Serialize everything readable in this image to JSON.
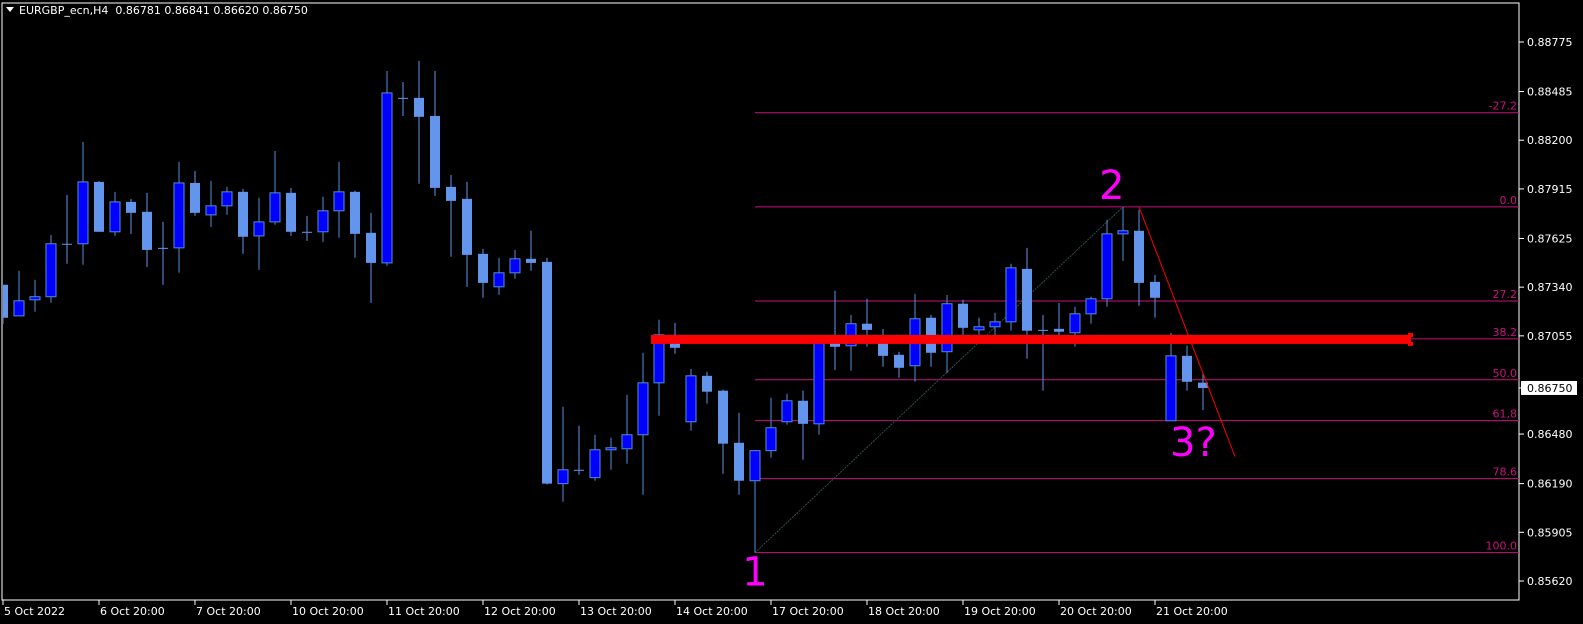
{
  "header": {
    "symbol": "EURGBP_ecn,H4",
    "open": "0.86781",
    "high": "0.86841",
    "low": "0.86620",
    "close": "0.86750"
  },
  "colors": {
    "background": "#000000",
    "foreground": "#ffffff",
    "bull_body": "#0000ff",
    "bull_border": "#4f8fd8",
    "bear_body": "#6495ed",
    "fib": "#c8127e",
    "support_line": "#ff0000",
    "trendline": "#ff0000",
    "zigzag": "#2f4f4f",
    "wave_label": "#ff00ff"
  },
  "chart_data": {
    "type": "candlestick",
    "timeframe": "H4",
    "ylim": [
      0.8552,
      0.8902
    ],
    "grid": false,
    "yticks": [
      "0.88775",
      "0.88485",
      "0.88200",
      "0.87915",
      "0.87625",
      "0.87340",
      "0.87055",
      "0.86480",
      "0.86190",
      "0.85905",
      "0.85620"
    ],
    "current_price": "0.86750",
    "xticks": [
      {
        "label": "5 Oct 2022",
        "bar": 0
      },
      {
        "label": "6 Oct 20:00",
        "bar": 6
      },
      {
        "label": "7 Oct 20:00",
        "bar": 12
      },
      {
        "label": "10 Oct 20:00",
        "bar": 18
      },
      {
        "label": "11 Oct 20:00",
        "bar": 24
      },
      {
        "label": "12 Oct 20:00",
        "bar": 30
      },
      {
        "label": "13 Oct 20:00",
        "bar": 36
      },
      {
        "label": "14 Oct 20:00",
        "bar": 42
      },
      {
        "label": "17 Oct 20:00",
        "bar": 48
      },
      {
        "label": "18 Oct 20:00",
        "bar": 54
      },
      {
        "label": "19 Oct 20:00",
        "bar": 60
      },
      {
        "label": "20 Oct 20:00",
        "bar": 66
      },
      {
        "label": "21 Oct 20:00",
        "bar": 72
      }
    ],
    "candles": [
      [
        0.87354,
        0.87354,
        0.87126,
        0.87161
      ],
      [
        0.87172,
        0.87436,
        0.87172,
        0.8726
      ],
      [
        0.87266,
        0.87383,
        0.87196,
        0.87284
      ],
      [
        0.87284,
        0.87646,
        0.87248,
        0.87594
      ],
      [
        0.87594,
        0.8788,
        0.87477,
        0.87594
      ],
      [
        0.87594,
        0.8819,
        0.87471,
        0.87956
      ],
      [
        0.87956,
        0.87962,
        0.87664,
        0.87664
      ],
      [
        0.87664,
        0.87898,
        0.8764,
        0.87839
      ],
      [
        0.87839,
        0.87857,
        0.87652,
        0.87775
      ],
      [
        0.87781,
        0.87892,
        0.87459,
        0.87558
      ],
      [
        0.8757,
        0.87722,
        0.87354,
        0.8757
      ],
      [
        0.8757,
        0.88073,
        0.87424,
        0.8795
      ],
      [
        0.8795,
        0.88021,
        0.87757,
        0.87775
      ],
      [
        0.87763,
        0.87962,
        0.87693,
        0.87816
      ],
      [
        0.87816,
        0.87927,
        0.87763,
        0.87898
      ],
      [
        0.87898,
        0.87915,
        0.87535,
        0.87635
      ],
      [
        0.8764,
        0.87863,
        0.87441,
        0.87722
      ],
      [
        0.87722,
        0.88138,
        0.87705,
        0.87892
      ],
      [
        0.87892,
        0.87921,
        0.8764,
        0.87664
      ],
      [
        0.87664,
        0.87757,
        0.87611,
        0.87664
      ],
      [
        0.87664,
        0.87869,
        0.87605,
        0.87787
      ],
      [
        0.87787,
        0.88073,
        0.87629,
        0.87898
      ],
      [
        0.87898,
        0.87904,
        0.87512,
        0.87652
      ],
      [
        0.87658,
        0.87775,
        0.87248,
        0.87482
      ],
      [
        0.87482,
        0.88606,
        0.87465,
        0.88477
      ],
      [
        0.88448,
        0.88541,
        0.88342,
        0.88448
      ],
      [
        0.88448,
        0.88664,
        0.87945,
        0.88337
      ],
      [
        0.88342,
        0.88606,
        0.87874,
        0.87921
      ],
      [
        0.87927,
        0.87997,
        0.87518,
        0.87845
      ],
      [
        0.87857,
        0.87956,
        0.87342,
        0.87529
      ],
      [
        0.87535,
        0.87564,
        0.87278,
        0.87365
      ],
      [
        0.87342,
        0.87512,
        0.87295,
        0.87424
      ],
      [
        0.87424,
        0.87558,
        0.87389,
        0.87506
      ],
      [
        0.87506,
        0.8767,
        0.87436,
        0.87482
      ],
      [
        0.87488,
        0.87512,
        0.86184,
        0.8619
      ],
      [
        0.8619,
        0.8664,
        0.86084,
        0.86271
      ],
      [
        0.86271,
        0.86529,
        0.86242,
        0.86271
      ],
      [
        0.86225,
        0.86476,
        0.86207,
        0.86388
      ],
      [
        0.86388,
        0.86459,
        0.86271,
        0.864
      ],
      [
        0.86394,
        0.8671,
        0.86307,
        0.86476
      ],
      [
        0.86476,
        0.86956,
        0.86125,
        0.8678
      ],
      [
        0.8678,
        0.87149,
        0.86587,
        0.87061
      ],
      [
        0.87061,
        0.87131,
        0.8695,
        0.86985
      ],
      [
        0.86552,
        0.86862,
        0.865,
        0.86821
      ],
      [
        0.86821,
        0.86845,
        0.86658,
        0.86728
      ],
      [
        0.86734,
        0.8674,
        0.86248,
        0.86424
      ],
      [
        0.86429,
        0.86605,
        0.86125,
        0.86207
      ],
      [
        0.86207,
        0.86383,
        0.85786,
        0.86383
      ],
      [
        0.86383,
        0.86693,
        0.86342,
        0.86517
      ],
      [
        0.86552,
        0.86716,
        0.86535,
        0.86675
      ],
      [
        0.86675,
        0.86734,
        0.8633,
        0.8654
      ],
      [
        0.8654,
        0.87044,
        0.86476,
        0.8702
      ],
      [
        0.87026,
        0.87319,
        0.86856,
        0.86991
      ],
      [
        0.86997,
        0.87178,
        0.86851,
        0.87126
      ],
      [
        0.87126,
        0.87272,
        0.86991,
        0.8709
      ],
      [
        0.8705,
        0.87096,
        0.86874,
        0.86938
      ],
      [
        0.86944,
        0.86962,
        0.8681,
        0.86868
      ],
      [
        0.8688,
        0.87301,
        0.86786,
        0.87155
      ],
      [
        0.87161,
        0.87178,
        0.86874,
        0.86956
      ],
      [
        0.86962,
        0.87295,
        0.86839,
        0.87243
      ],
      [
        0.87243,
        0.87266,
        0.87038,
        0.87102
      ],
      [
        0.8709,
        0.87161,
        0.87061,
        0.87108
      ],
      [
        0.87108,
        0.8719,
        0.87038,
        0.87137
      ],
      [
        0.87137,
        0.87477,
        0.87085,
        0.87453
      ],
      [
        0.87447,
        0.8757,
        0.86921,
        0.87085
      ],
      [
        0.8709,
        0.87178,
        0.86734,
        0.8709
      ],
      [
        0.87096,
        0.87248,
        0.87044,
        0.87079
      ],
      [
        0.87073,
        0.87225,
        0.86991,
        0.87184
      ],
      [
        0.87184,
        0.87284,
        0.87126,
        0.87272
      ],
      [
        0.87272,
        0.87734,
        0.87225,
        0.87652
      ],
      [
        0.87652,
        0.8781,
        0.87494,
        0.8767
      ],
      [
        0.8767,
        0.87792,
        0.87231,
        0.87365
      ],
      [
        0.87371,
        0.87412,
        0.87161,
        0.87278
      ],
      [
        0.86558,
        0.87073,
        0.86558,
        0.86938
      ],
      [
        0.86938,
        0.86997,
        0.86734,
        0.86786
      ],
      [
        0.86781,
        0.86841,
        0.8662,
        0.8675
      ]
    ],
    "fibonacci": {
      "from": {
        "bar": 47,
        "price": 0.85786
      },
      "to": {
        "bar": 70,
        "price": 0.8781
      },
      "levels": [
        {
          "label": "-27.2",
          "price": 0.88361
        },
        {
          "label": "0.0",
          "price": 0.8781
        },
        {
          "label": "27.2",
          "price": 0.87259
        },
        {
          "label": "38.2",
          "price": 0.87037
        },
        {
          "label": "50.0",
          "price": 0.86798
        },
        {
          "label": "61,8",
          "price": 0.86559
        },
        {
          "label": "78.6",
          "price": 0.86219
        },
        {
          "label": "100.0",
          "price": 0.85786
        }
      ]
    },
    "support_line": {
      "price": 0.87037,
      "from_bar": 41,
      "to_bar": 88
    },
    "trendline": {
      "from": {
        "bar": 71,
        "price": 0.8781
      },
      "to": {
        "bar": 77,
        "price": 0.86348
      }
    },
    "wave_labels": [
      {
        "text": "1",
        "bar": 47,
        "price": 0.85675
      },
      {
        "text": "2",
        "bar": 69.3,
        "price": 0.87939
      },
      {
        "text": "3?",
        "bar": 74.4,
        "price": 0.86435
      }
    ]
  }
}
